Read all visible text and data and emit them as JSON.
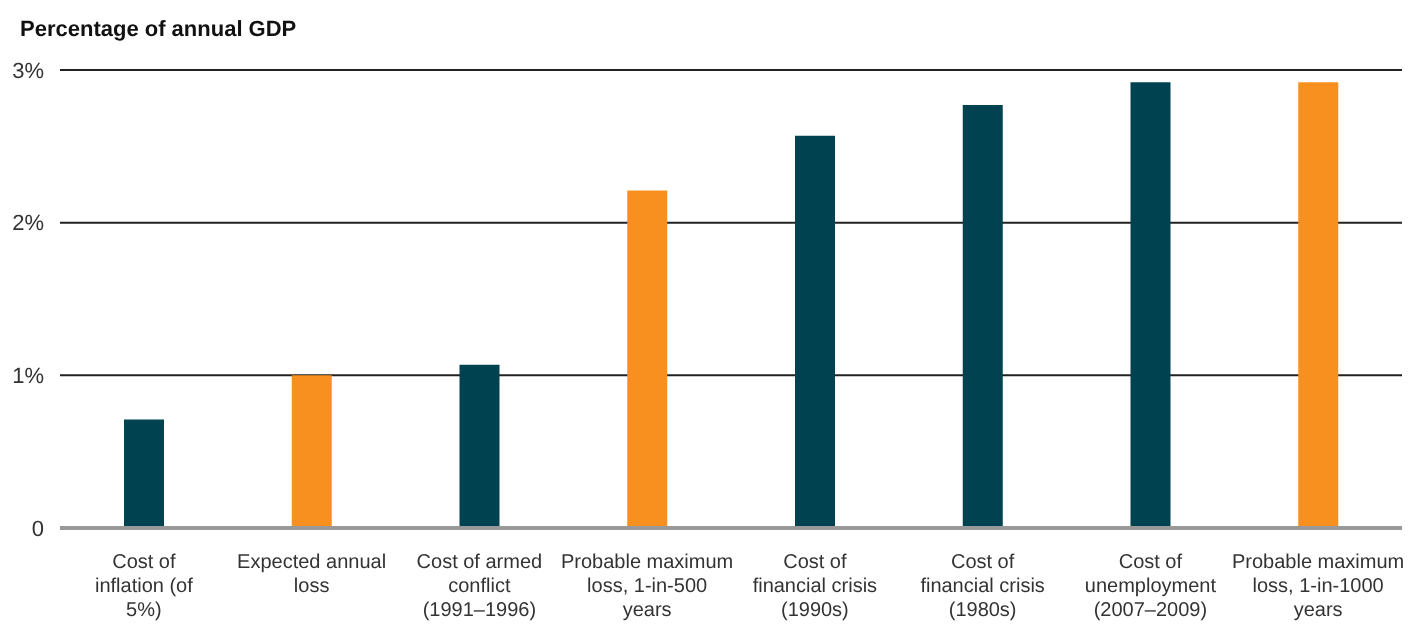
{
  "chart_data": {
    "type": "bar",
    "ylabel": "Percentage of annual GDP",
    "categories": [
      "Cost of inflation (of 5%)",
      "Expected annual loss",
      "Cost of armed conflict (1991–1996)",
      "Probable maximum loss, 1-in-500 years",
      "Cost of financial crisis (1990s)",
      "Cost of financial crisis (1980s)",
      "Cost of unemployment (2007–2009)",
      "Probable maximum loss, 1-in-1000 years"
    ],
    "values": [
      0.71,
      1.0,
      1.07,
      2.21,
      2.57,
      2.77,
      2.92,
      2.92
    ],
    "colors": [
      "#00424f",
      "#f7901e",
      "#00424f",
      "#f7901e",
      "#00424f",
      "#00424f",
      "#00424f",
      "#f7901e"
    ],
    "ylim": [
      0,
      3
    ],
    "yticks": [
      {
        "value": 0,
        "label": "0"
      },
      {
        "value": 1,
        "label": "1%"
      },
      {
        "value": 2,
        "label": "2%"
      },
      {
        "value": 3,
        "label": "3%"
      }
    ],
    "grid": "y"
  }
}
